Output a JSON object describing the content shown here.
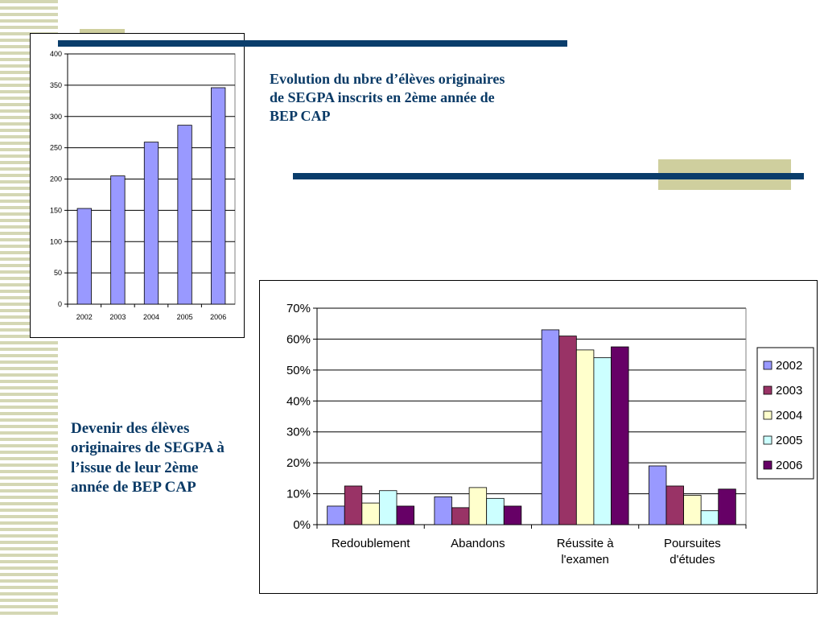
{
  "slide": {
    "title_top": "Evolution du  nbre d’élèves originaires de SEGPA  inscrits en 2ème année de BEP CAP",
    "title_bottom": "Devenir des élèves originaires de SEGPA à l’issue de leur 2ème année de BEP CAP",
    "colors": {
      "title": "#0a3a66",
      "accent_line": "#0a3d6b",
      "accent_block": "#cfcf9e"
    }
  },
  "chart_data": [
    {
      "type": "bar",
      "categories": [
        "2002",
        "2003",
        "2004",
        "2005",
        "2006"
      ],
      "values": [
        153,
        205,
        259,
        286,
        346
      ],
      "ylim": [
        0,
        400
      ],
      "yticks": [
        0,
        50,
        100,
        150,
        200,
        250,
        300,
        350,
        400
      ],
      "grid": true,
      "legend": "none",
      "color": "#9999ff"
    },
    {
      "type": "bar",
      "categories": [
        "Redoublement",
        "Abandons",
        "Réussite à l'examen",
        "Poursuites d'études"
      ],
      "category_lines": [
        [
          "Redoublement"
        ],
        [
          "Abandons"
        ],
        [
          "Réussite à",
          "l'examen"
        ],
        [
          "Poursuites",
          "d'études"
        ]
      ],
      "series": [
        {
          "name": "2002",
          "color": "#9999ff",
          "values": [
            0.06,
            0.09,
            0.63,
            0.19
          ]
        },
        {
          "name": "2003",
          "color": "#993366",
          "values": [
            0.125,
            0.055,
            0.61,
            0.125
          ]
        },
        {
          "name": "2004",
          "color": "#ffffcc",
          "values": [
            0.07,
            0.12,
            0.565,
            0.095
          ]
        },
        {
          "name": "2005",
          "color": "#ccffff",
          "values": [
            0.11,
            0.085,
            0.54,
            0.045
          ]
        },
        {
          "name": "2006",
          "color": "#660066",
          "values": [
            0.06,
            0.06,
            0.575,
            0.115
          ]
        }
      ],
      "ylim": [
        0,
        0.7
      ],
      "yticks": [
        0,
        0.1,
        0.2,
        0.3,
        0.4,
        0.5,
        0.6,
        0.7
      ],
      "ytick_labels": [
        "0%",
        "10%",
        "20%",
        "30%",
        "40%",
        "50%",
        "60%",
        "70%"
      ],
      "grid": true,
      "legend": "right"
    }
  ]
}
